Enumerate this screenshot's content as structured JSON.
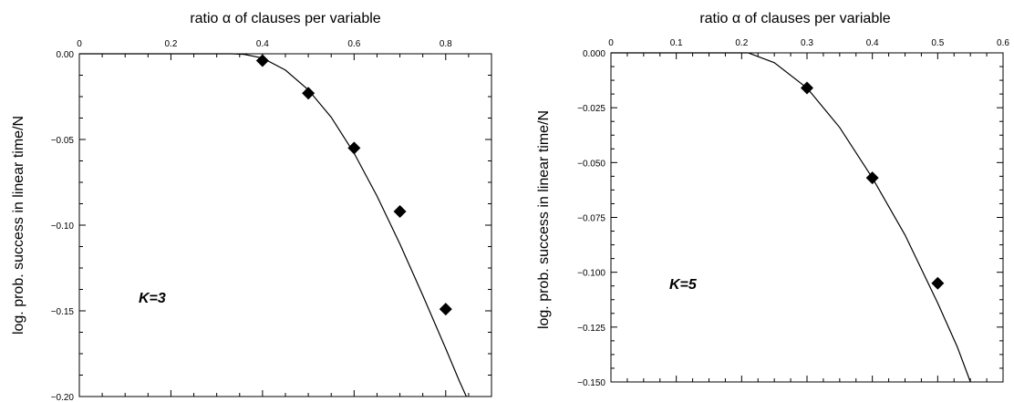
{
  "chart_data": [
    {
      "type": "scatter",
      "panel_label": "K=3",
      "xlabel": "ratio α of clauses per variable",
      "ylabel": "log. prob. success in linear time/N",
      "xlim": [
        0,
        0.9
      ],
      "ylim": [
        -0.2,
        0.0
      ],
      "x_axis_position": "top",
      "grid": false,
      "legend": "none",
      "xticks": [
        0,
        0.2,
        0.4,
        0.6,
        0.8
      ],
      "xtick_labels": [
        "0",
        "0.2",
        "0.4",
        "0.6",
        "0.8"
      ],
      "yticks": [
        0.0,
        -0.05,
        -0.1,
        -0.15,
        -0.2
      ],
      "ytick_labels": [
        "0.00",
        "−0.05",
        "−0.10",
        "−0.15",
        "−0.20"
      ],
      "series": [
        {
          "kind": "line",
          "x": [
            0.0,
            0.3,
            0.333,
            0.36,
            0.4,
            0.45,
            0.5,
            0.55,
            0.6,
            0.65,
            0.7,
            0.75,
            0.8,
            0.83,
            0.845
          ],
          "y": [
            0.0,
            0.0,
            0.0,
            -0.0003,
            -0.0025,
            -0.0095,
            -0.021,
            -0.037,
            -0.058,
            -0.083,
            -0.111,
            -0.141,
            -0.172,
            -0.191,
            -0.2
          ]
        },
        {
          "kind": "points",
          "marker": "diamond",
          "x": [
            0.4,
            0.5,
            0.6,
            0.7,
            0.8
          ],
          "y": [
            -0.004,
            -0.023,
            -0.055,
            -0.092,
            -0.149
          ]
        }
      ]
    },
    {
      "type": "scatter",
      "panel_label": "K=5",
      "xlabel": "ratio α of clauses per variable",
      "ylabel": "log. prob. success in linear time/N",
      "xlim": [
        0,
        0.6
      ],
      "ylim": [
        -0.15,
        0.0
      ],
      "x_axis_position": "top",
      "grid": false,
      "legend": "none",
      "xticks": [
        0,
        0.1,
        0.2,
        0.3,
        0.4,
        0.5,
        0.6
      ],
      "xtick_labels": [
        "0",
        "0.1",
        "0.2",
        "0.3",
        "0.4",
        "0.5",
        "0.6"
      ],
      "yticks": [
        0.0,
        -0.025,
        -0.05,
        -0.075,
        -0.1,
        -0.125,
        -0.15
      ],
      "ytick_labels": [
        "0.000",
        "−0.025",
        "−0.050",
        "−0.075",
        "−0.100",
        "−0.125",
        "−0.150"
      ],
      "series": [
        {
          "kind": "line",
          "x": [
            0.0,
            0.2,
            0.21,
            0.25,
            0.3,
            0.35,
            0.4,
            0.45,
            0.5,
            0.53,
            0.55
          ],
          "y": [
            0.0,
            0.0,
            0.0,
            -0.0045,
            -0.016,
            -0.034,
            -0.057,
            -0.083,
            -0.114,
            -0.134,
            -0.15
          ]
        },
        {
          "kind": "points",
          "marker": "diamond",
          "x": [
            0.3,
            0.4,
            0.5
          ],
          "y": [
            -0.016,
            -0.057,
            -0.105
          ]
        }
      ]
    }
  ]
}
